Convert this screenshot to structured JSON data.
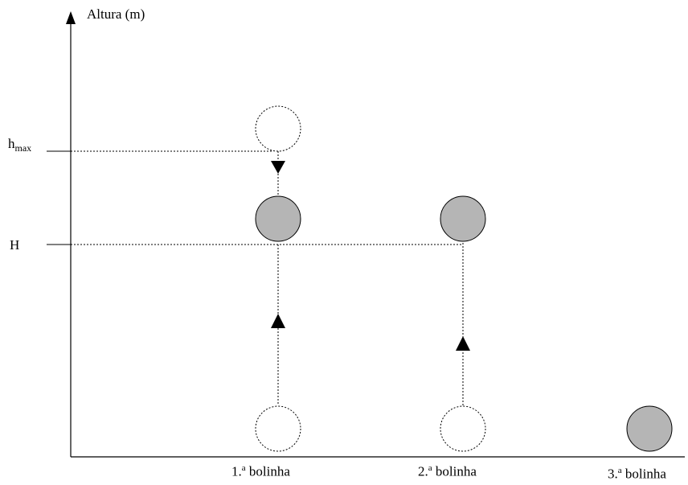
{
  "y_axis": {
    "label": "Altura (m)"
  },
  "levels": {
    "hmax": {
      "main": "h",
      "sub": "max"
    },
    "H": {
      "label": "H"
    }
  },
  "balls": [
    {
      "label_prefix": "1.",
      "label_sup": "a",
      "label_rest": " bolinha"
    },
    {
      "label_prefix": "2.",
      "label_sup": "a",
      "label_rest": " bolinha"
    },
    {
      "label_prefix": "3.",
      "label_sup": "a",
      "label_rest": " bolinha"
    }
  ],
  "colors": {
    "ball_fill": "#b5b5b5",
    "stroke": "#000000"
  }
}
